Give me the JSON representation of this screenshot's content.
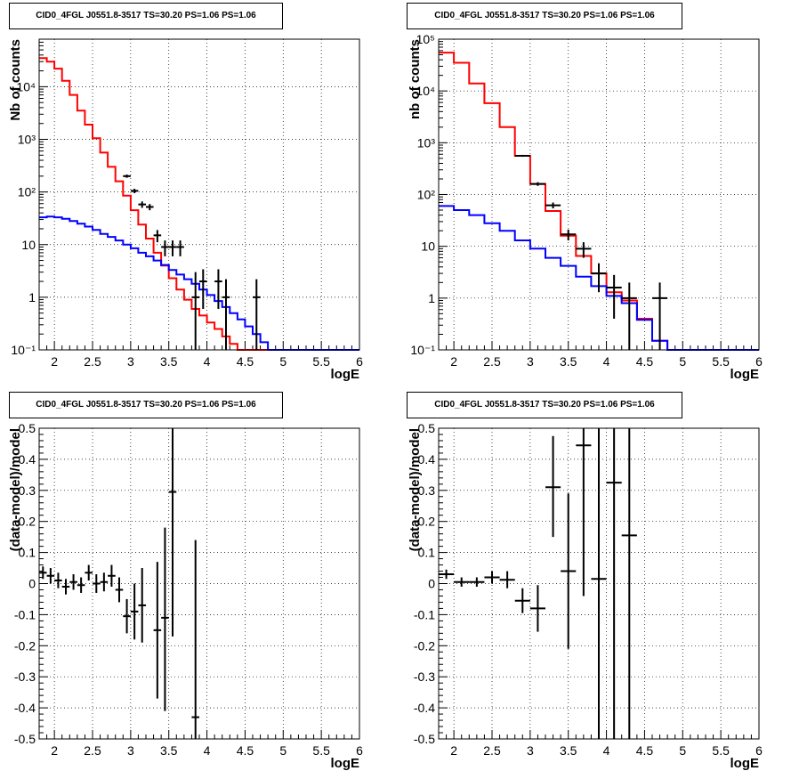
{
  "chart_data": [
    {
      "type": "step",
      "title": "CID0_4FGL J0551.8-3517 TS=30.20 PS=1.06 PS=1.06",
      "xlabel": "logE",
      "ylabel": "Nb of counts",
      "yscale": "log",
      "xlim": [
        1.8,
        6.0
      ],
      "ylim": [
        0.1,
        80000
      ],
      "x_ticks": [
        "2",
        "2.5",
        "3",
        "3.5",
        "4",
        "4.5",
        "5",
        "5.5",
        "6"
      ],
      "y_ticks": [
        "10⁻¹",
        "1",
        "10",
        "10²",
        "10³",
        "10⁴"
      ],
      "grid": true,
      "bin_width": 0.1,
      "bin_starts": [
        1.8,
        1.9,
        2.0,
        2.1,
        2.2,
        2.3,
        2.4,
        2.5,
        2.6,
        2.7,
        2.8,
        2.9,
        3.0,
        3.1,
        3.2,
        3.3,
        3.4,
        3.5,
        3.6,
        3.7,
        3.8,
        3.9,
        4.0,
        4.1,
        4.2,
        4.3,
        4.4,
        4.5,
        4.6,
        4.7,
        4.8,
        4.9,
        5.0,
        5.1,
        5.2,
        5.3,
        5.4,
        5.5,
        5.6,
        5.7,
        5.8,
        5.9
      ],
      "series": [
        {
          "color": "#ff0000",
          "values": [
            35000,
            30000,
            22000,
            13000,
            7000,
            3500,
            1900,
            1050,
            560,
            300,
            160,
            85,
            45,
            24,
            13,
            7,
            4,
            2.3,
            1.4,
            0.9,
            0.6,
            0.45,
            0.33,
            0.25,
            0.18,
            0.13,
            0.1,
            0.1,
            0.1,
            0.1,
            0.1,
            0.1,
            0.1,
            0.1,
            0.1,
            0.1,
            0.1,
            0.1,
            0.1,
            0.1,
            0.1,
            0.1
          ]
        },
        {
          "color": "#0000ff",
          "values": [
            33,
            34,
            33,
            31,
            28,
            25,
            22,
            19,
            16,
            14,
            12,
            10,
            8.5,
            7,
            6,
            5,
            4.1,
            3.3,
            2.7,
            2.2,
            1.8,
            1.4,
            1.1,
            0.85,
            0.65,
            0.5,
            0.38,
            0.28,
            0.2,
            0.14,
            0.1,
            0.1,
            0.1,
            0.1,
            0.1,
            0.1,
            0.1,
            0.1,
            0.1,
            0.1,
            0.1,
            0.1
          ]
        }
      ],
      "points": [
        {
          "x": 2.95,
          "y": 200,
          "lo": 186,
          "hi": 214
        },
        {
          "x": 3.05,
          "y": 105,
          "lo": 95,
          "hi": 115
        },
        {
          "x": 3.15,
          "y": 58,
          "lo": 50,
          "hi": 66
        },
        {
          "x": 3.25,
          "y": 52,
          "lo": 45,
          "hi": 59
        },
        {
          "x": 3.35,
          "y": 15,
          "lo": 11.1,
          "hi": 18.9
        },
        {
          "x": 3.45,
          "y": 9,
          "lo": 6,
          "hi": 12
        },
        {
          "x": 3.55,
          "y": 9,
          "lo": 6,
          "hi": 12
        },
        {
          "x": 3.65,
          "y": 9,
          "lo": 6,
          "hi": 12
        },
        {
          "x": 3.85,
          "y": 1,
          "lo": 0.1,
          "hi": 3
        },
        {
          "x": 3.95,
          "y": 2,
          "lo": 0.6,
          "hi": 3.4
        },
        {
          "x": 4.15,
          "y": 2,
          "lo": 0.6,
          "hi": 3.4
        },
        {
          "x": 4.25,
          "y": 1,
          "lo": 0.1,
          "hi": 2.2
        },
        {
          "x": 4.65,
          "y": 1,
          "lo": 0.1,
          "hi": 2.2
        }
      ]
    },
    {
      "type": "step",
      "title": "CID0_4FGL J0551.8-3517 TS=30.20 PS=1.06 PS=1.06",
      "xlabel": "logE",
      "ylabel": "nb of counts",
      "yscale": "log",
      "xlim": [
        1.8,
        6.0
      ],
      "ylim": [
        0.1,
        100000
      ],
      "x_ticks": [
        "2",
        "2.5",
        "3",
        "3.5",
        "4",
        "4.5",
        "5",
        "5.5",
        "6"
      ],
      "y_ticks": [
        "10⁻¹",
        "1",
        "10",
        "10²",
        "10³",
        "10⁴",
        "10⁵"
      ],
      "grid": true,
      "bin_width": 0.2,
      "bin_starts": [
        1.8,
        2.0,
        2.2,
        2.4,
        2.6,
        2.8,
        3.0,
        3.2,
        3.4,
        3.6,
        3.8,
        4.0,
        4.2,
        4.4,
        4.6,
        4.8,
        5.0,
        5.2,
        5.4,
        5.6,
        5.8
      ],
      "series": [
        {
          "color": "#ff0000",
          "values": [
            55000,
            35000,
            14000,
            5800,
            2000,
            560,
            160,
            48,
            16,
            6.5,
            3,
            1.3,
            0.9,
            0.4,
            0.15,
            0.1,
            0.1,
            0.1,
            0.1,
            0.1,
            0.1
          ]
        },
        {
          "color": "#0000ff",
          "values": [
            60,
            50,
            40,
            28,
            20,
            13,
            9,
            6,
            4.2,
            2.6,
            1.7,
            1.1,
            0.8,
            0.38,
            0.15,
            0.1,
            0.1,
            0.1,
            0.1,
            0.1,
            0.1
          ]
        }
      ],
      "points": [
        {
          "x": 2.9,
          "y": 560,
          "lo": 536,
          "hi": 584
        },
        {
          "x": 3.1,
          "y": 160,
          "lo": 147,
          "hi": 173
        },
        {
          "x": 3.3,
          "y": 62,
          "lo": 54,
          "hi": 70
        },
        {
          "x": 3.5,
          "y": 17,
          "lo": 13,
          "hi": 21
        },
        {
          "x": 3.7,
          "y": 9,
          "lo": 6,
          "hi": 12
        },
        {
          "x": 3.9,
          "y": 3,
          "lo": 1.3,
          "hi": 4.7
        },
        {
          "x": 4.1,
          "y": 1.6,
          "lo": 0.4,
          "hi": 2.8
        },
        {
          "x": 4.3,
          "y": 1,
          "lo": 0.1,
          "hi": 2
        },
        {
          "x": 4.7,
          "y": 1,
          "lo": 0.1,
          "hi": 2
        }
      ]
    },
    {
      "type": "scatter",
      "title": "CID0_4FGL J0551.8-3517 TS=30.20 PS=1.06 PS=1.06",
      "xlabel": "logE",
      "ylabel": "(data-model)/model",
      "yscale": "linear",
      "xlim": [
        1.8,
        6.0
      ],
      "ylim": [
        -0.5,
        0.5
      ],
      "x_ticks": [
        "2",
        "2.5",
        "3",
        "3.5",
        "4",
        "4.5",
        "5",
        "5.5",
        "6"
      ],
      "y_ticks": [
        "-0.5",
        "-0.4",
        "-0.3",
        "-0.2",
        "-0.1",
        "0",
        "0.1",
        "0.2",
        "0.3",
        "0.4",
        "0.5"
      ],
      "grid": true,
      "bin_width": 0.1,
      "points": [
        {
          "x": 1.85,
          "y": 0.035,
          "lo": 0.015,
          "hi": 0.055
        },
        {
          "x": 1.95,
          "y": 0.025,
          "lo": 0.0,
          "hi": 0.05
        },
        {
          "x": 2.05,
          "y": 0.01,
          "lo": -0.015,
          "hi": 0.035
        },
        {
          "x": 2.15,
          "y": -0.01,
          "lo": -0.035,
          "hi": 0.015
        },
        {
          "x": 2.25,
          "y": 0.005,
          "lo": -0.02,
          "hi": 0.03
        },
        {
          "x": 2.35,
          "y": -0.005,
          "lo": -0.03,
          "hi": 0.02
        },
        {
          "x": 2.45,
          "y": 0.035,
          "lo": 0.01,
          "hi": 0.06
        },
        {
          "x": 2.55,
          "y": 0.0,
          "lo": -0.03,
          "hi": 0.03
        },
        {
          "x": 2.65,
          "y": 0.005,
          "lo": -0.025,
          "hi": 0.035
        },
        {
          "x": 2.75,
          "y": 0.025,
          "lo": -0.01,
          "hi": 0.06
        },
        {
          "x": 2.85,
          "y": -0.02,
          "lo": -0.06,
          "hi": 0.02
        },
        {
          "x": 2.95,
          "y": -0.105,
          "lo": -0.16,
          "hi": -0.05
        },
        {
          "x": 3.05,
          "y": -0.09,
          "lo": -0.18,
          "hi": 0.0
        },
        {
          "x": 3.15,
          "y": -0.07,
          "lo": -0.19,
          "hi": 0.05
        },
        {
          "x": 3.35,
          "y": -0.15,
          "lo": -0.37,
          "hi": 0.07
        },
        {
          "x": 3.45,
          "y": -0.11,
          "lo": -0.41,
          "hi": 0.18
        },
        {
          "x": 3.55,
          "y": 0.295,
          "lo": -0.17,
          "hi": 0.5
        },
        {
          "x": 3.85,
          "y": -0.43,
          "lo": -0.5,
          "hi": 0.14
        }
      ]
    },
    {
      "type": "scatter",
      "title": "CID0_4FGL J0551.8-3517 TS=30.20 PS=1.06 PS=1.06",
      "xlabel": "logE",
      "ylabel": "(data-model)/model",
      "yscale": "linear",
      "xlim": [
        1.8,
        6.0
      ],
      "ylim": [
        -0.5,
        0.5
      ],
      "x_ticks": [
        "2",
        "2.5",
        "3",
        "3.5",
        "4",
        "4.5",
        "5",
        "5.5",
        "6"
      ],
      "y_ticks": [
        "-0.5",
        "-0.4",
        "-0.3",
        "-0.2",
        "-0.1",
        "0",
        "0.1",
        "0.2",
        "0.3",
        "0.4",
        "0.5"
      ],
      "grid": true,
      "bin_width": 0.2,
      "points": [
        {
          "x": 1.9,
          "y": 0.03,
          "lo": 0.015,
          "hi": 0.045
        },
        {
          "x": 2.1,
          "y": 0.005,
          "lo": -0.01,
          "hi": 0.02
        },
        {
          "x": 2.3,
          "y": 0.005,
          "lo": -0.01,
          "hi": 0.02
        },
        {
          "x": 2.5,
          "y": 0.02,
          "lo": 0.0,
          "hi": 0.04
        },
        {
          "x": 2.7,
          "y": 0.012,
          "lo": -0.015,
          "hi": 0.04
        },
        {
          "x": 2.9,
          "y": -0.055,
          "lo": -0.095,
          "hi": -0.015
        },
        {
          "x": 3.1,
          "y": -0.08,
          "lo": -0.155,
          "hi": -0.005
        },
        {
          "x": 3.3,
          "y": 0.31,
          "lo": 0.15,
          "hi": 0.475
        },
        {
          "x": 3.5,
          "y": 0.04,
          "lo": -0.21,
          "hi": 0.29
        },
        {
          "x": 3.7,
          "y": 0.445,
          "lo": -0.04,
          "hi": 0.5
        },
        {
          "x": 3.9,
          "y": 0.015,
          "lo": -0.5,
          "hi": 0.5
        },
        {
          "x": 4.1,
          "y": 0.325,
          "lo": -0.5,
          "hi": 0.5
        },
        {
          "x": 4.3,
          "y": 0.155,
          "lo": -0.5,
          "hi": 0.5
        }
      ]
    }
  ]
}
